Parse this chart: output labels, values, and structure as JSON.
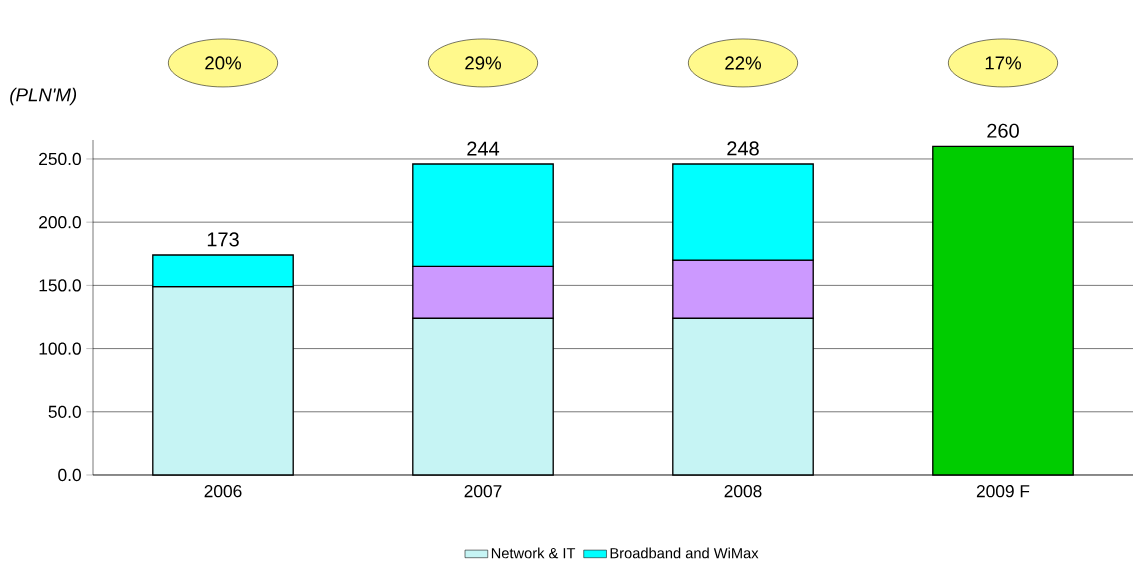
{
  "chart_data": {
    "type": "bar",
    "stacked": true,
    "ylabel": "(PLN'M)",
    "categories": [
      "2006",
      "2007",
      "2008",
      "2009 F"
    ],
    "series": [
      {
        "name": "Network & IT",
        "color": "#c6f4f4",
        "values": [
          149,
          124,
          124,
          null
        ]
      },
      {
        "color": "#cc99ff",
        "values": [
          null,
          41,
          46,
          null
        ]
      },
      {
        "name": "Broadband and WiMax",
        "color": "#00ffff",
        "values": [
          25,
          81,
          76,
          null
        ]
      },
      {
        "color": "#00cc00",
        "values": [
          null,
          null,
          null,
          260
        ]
      }
    ],
    "totals": [
      "173",
      "244",
      "248",
      "260"
    ],
    "annotations": [
      "20%",
      "29%",
      "22%",
      "17%"
    ],
    "ylim": [
      0,
      265
    ],
    "yticks": [
      {
        "value": 0,
        "label": "0.0"
      },
      {
        "value": 50,
        "label": "50.0"
      },
      {
        "value": 100,
        "label": "100.0"
      },
      {
        "value": 150,
        "label": "150.0"
      },
      {
        "value": 200,
        "label": "200.0"
      },
      {
        "value": 250,
        "label": "250.0"
      }
    ],
    "grid": "y",
    "legend": "bottom"
  }
}
